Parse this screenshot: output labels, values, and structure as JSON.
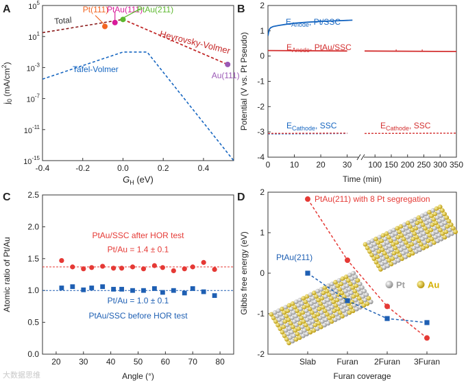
{
  "chart_data": [
    {
      "panel": "A",
      "type": "line",
      "xlabel_main": "G",
      "xlabel_sub": "H",
      "xlabel_unit": " (eV)",
      "ylabel_main": "j",
      "ylabel_sub": "0",
      "ylabel_unit": " (mA/cm",
      "ylabel_sup": "2",
      "ylabel_end": ")",
      "xlim": [
        -0.4,
        0.55
      ],
      "ylim_log10": [
        -15,
        5
      ],
      "xticks": [
        -0.4,
        -0.2,
        0.0,
        0.2,
        0.4
      ],
      "xtick_labels": [
        "-0.4",
        "-0.2",
        "0.0",
        "0.2",
        "0.4"
      ],
      "ytick_exps": [
        5,
        1,
        -3,
        -7,
        -11,
        -15
      ],
      "ytick_base": "10",
      "series": [
        {
          "name": "Total",
          "color": "#8b1a1a",
          "style": "dashed",
          "x": [
            -0.4,
            0.0,
            0.52
          ],
          "log10_y": [
            1.5,
            3.2,
            -2.6
          ]
        },
        {
          "name": "Heyrovsky-Volmer",
          "color": "#c62828",
          "style": "dashed",
          "x": [
            0.0,
            0.52
          ],
          "log10_y": [
            3.2,
            -2.6
          ]
        },
        {
          "name": "Tafel-Volmer",
          "color": "#1565c0",
          "style": "dashed",
          "x": [
            -0.4,
            0.0,
            0.12,
            0.55
          ],
          "log10_y": [
            -4.5,
            -1.0,
            -1.0,
            -15.0
          ]
        }
      ],
      "points": [
        {
          "label": "Pt(111)",
          "x": -0.09,
          "log10_y": 2.3,
          "color": "#f26522"
        },
        {
          "label": "PtAu(111)",
          "x": -0.04,
          "log10_y": 2.8,
          "color": "#d81b9a"
        },
        {
          "label": "PtAu(211)",
          "x": 0.0,
          "log10_y": 3.2,
          "color": "#5cb82e"
        },
        {
          "label": "Au(111)",
          "x": 0.52,
          "log10_y": -2.6,
          "color": "#9b59b6"
        }
      ]
    },
    {
      "panel": "B",
      "type": "line",
      "xlabel": "Time (min)",
      "ylabel": "Potential (V vs. Pt Pseudo)",
      "ylim": [
        -4,
        2
      ],
      "yticks": [
        -4,
        -3,
        -2,
        -1,
        0,
        1,
        2
      ],
      "xticks_left": [
        0,
        10,
        20,
        30
      ],
      "xticks_right": [
        100,
        150,
        200,
        250,
        300,
        350
      ],
      "series": [
        {
          "name": "E_Anode, Pt/SSC",
          "color": "#1565c0",
          "x": [
            0,
            0.5,
            1,
            2,
            4,
            7,
            10,
            15,
            20,
            25,
            30,
            32
          ],
          "y": [
            0.8,
            1.05,
            1.12,
            1.17,
            1.21,
            1.26,
            1.3,
            1.34,
            1.37,
            1.39,
            1.41,
            1.42
          ]
        },
        {
          "name": "E_Anode, PtAu/SSC",
          "color": "#d32f2f",
          "x": [
            0,
            30,
            68,
            350
          ],
          "y": [
            0.22,
            0.2,
            0.2,
            0.18
          ]
        },
        {
          "name": "E_Cathode, SSC",
          "color": "#1565c0",
          "style": "dashed",
          "x": [
            0,
            30
          ],
          "y": [
            -3.08,
            -3.06
          ]
        },
        {
          "name": "E_Cathode, SSC",
          "color": "#d32f2f",
          "style": "dashed",
          "x": [
            0,
            30,
            68,
            350
          ],
          "y": [
            -3.06,
            -3.05,
            -3.06,
            -3.05
          ]
        }
      ],
      "labels": [
        {
          "main": "E",
          "sub": "Anode",
          "rest": ", Pt/SSC",
          "color": "#1565c0"
        },
        {
          "main": "E",
          "sub": "Anode",
          "rest": ", PtAu/SSC",
          "color": "#d32f2f"
        },
        {
          "main": "E",
          "sub": "Cathode",
          "rest": ", SSC",
          "color": "#1565c0"
        },
        {
          "main": "E",
          "sub": "Cathode",
          "rest": ", SSC",
          "color": "#d32f2f"
        }
      ]
    },
    {
      "panel": "C",
      "type": "scatter",
      "xlabel": "Angle (°)",
      "ylabel": "Atomic ratio of Pt/Au",
      "xlim": [
        15,
        85
      ],
      "ylim": [
        0,
        2.5
      ],
      "xticks": [
        20,
        30,
        40,
        50,
        60,
        70,
        80
      ],
      "yticks": [
        0.0,
        0.5,
        1.0,
        1.5,
        2.0,
        2.5
      ],
      "series": [
        {
          "name": "PtAu/SSC after HOR test",
          "color": "#e53935",
          "marker": "circle",
          "mean": 1.37,
          "x": [
            22,
            26,
            30,
            33,
            37,
            41,
            44,
            48,
            52,
            56,
            59,
            63,
            67,
            70,
            74,
            78
          ],
          "y": [
            1.47,
            1.37,
            1.34,
            1.36,
            1.38,
            1.35,
            1.35,
            1.37,
            1.34,
            1.39,
            1.36,
            1.31,
            1.34,
            1.37,
            1.44,
            1.33
          ]
        },
        {
          "name": "PtAu/SSC before HOR test",
          "color": "#1e5fb3",
          "marker": "square",
          "mean": 1.0,
          "x": [
            22,
            26,
            30,
            33,
            37,
            41,
            44,
            48,
            52,
            56,
            59,
            63,
            67,
            70,
            74,
            78
          ],
          "y": [
            1.04,
            1.06,
            1.01,
            1.04,
            1.06,
            1.02,
            1.02,
            1.0,
            1.0,
            1.03,
            0.97,
            1.0,
            0.96,
            1.03,
            0.98,
            0.92
          ]
        }
      ],
      "annotations": {
        "after_title": "PtAu/SSC after HOR test",
        "after_ratio": "Pt/Au = 1.4 ± 0.1",
        "before_ratio": "Pt/Au = 1.0 ± 0.1",
        "before_title": "PtAu/SSC before HOR test"
      }
    },
    {
      "panel": "D",
      "type": "line",
      "xlabel": "Furan coverage",
      "ylabel": "Gibbs free energy (eV)",
      "categories": [
        "Slab",
        "Furan",
        "2Furan",
        "3Furan"
      ],
      "ylim": [
        -2,
        2
      ],
      "yticks": [
        -2,
        -1,
        0,
        1,
        2
      ],
      "series": [
        {
          "name": "PtAu(211) with 8 Pt segregation",
          "color": "#e53935",
          "marker": "circle",
          "values": [
            1.83,
            0.32,
            -0.82,
            -1.6
          ]
        },
        {
          "name": "PtAu(211)",
          "color": "#1e5fb3",
          "marker": "square",
          "values": [
            0.0,
            -0.68,
            -1.12,
            -1.22
          ]
        }
      ],
      "legend_atoms": [
        {
          "label": "Pt",
          "color": "#c0c0c0"
        },
        {
          "label": "Au",
          "color": "#e3c21a"
        }
      ]
    }
  ],
  "panel_letters": [
    "A",
    "B",
    "C",
    "D"
  ],
  "watermark": "大数据思维"
}
